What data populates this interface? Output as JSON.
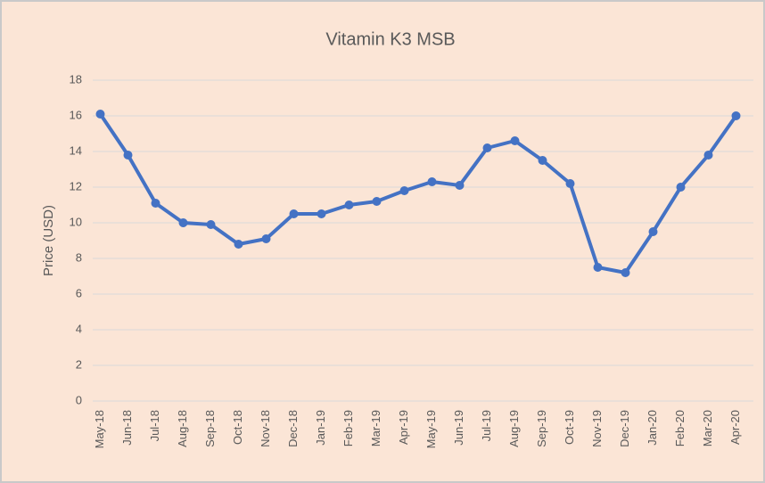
{
  "chart_data": {
    "type": "line",
    "title": "Vitamin K3 MSB",
    "y_label": "Price (USD)",
    "categories": [
      "May-18",
      "Jun-18",
      "Jul-18",
      "Aug-18",
      "Sep-18",
      "Oct-18",
      "Nov-18",
      "Dec-18",
      "Jan-19",
      "Feb-19",
      "Mar-19",
      "Apr-19",
      "May-19",
      "Jun-19",
      "Jul-19",
      "Aug-19",
      "Sep-19",
      "Oct-19",
      "Nov-19",
      "Dec-19",
      "Jan-20",
      "Feb-20",
      "Mar-20",
      "Apr-20"
    ],
    "series": [
      {
        "name": "Price",
        "color": "#4472c4",
        "values": [
          16.1,
          13.8,
          11.1,
          10.0,
          9.9,
          8.8,
          9.1,
          10.5,
          10.5,
          11.0,
          11.2,
          11.8,
          12.3,
          12.1,
          14.2,
          14.6,
          13.5,
          12.2,
          7.5,
          7.2,
          9.5,
          12.0,
          13.8,
          16.0
        ]
      }
    ],
    "ylim": [
      0,
      18
    ],
    "yticks": [
      0,
      2,
      4,
      6,
      8,
      10,
      12,
      14,
      16,
      18
    ],
    "grid": true
  }
}
